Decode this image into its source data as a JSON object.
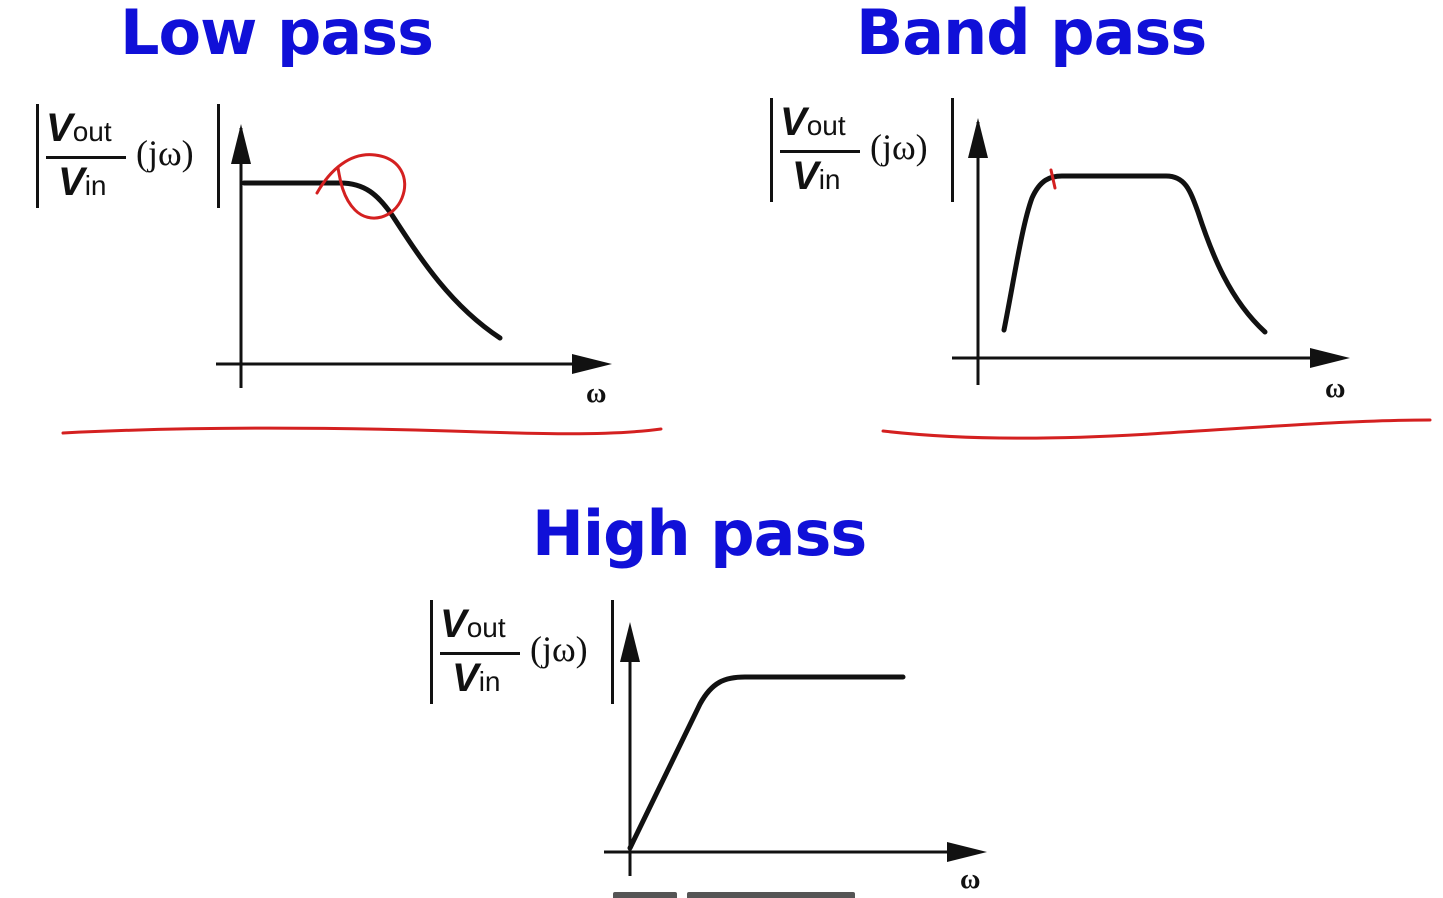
{
  "lowpass": {
    "title": "Low pass",
    "ylabel_numerator": "V",
    "ylabel_numerator_sub": "out",
    "ylabel_denominator": "V",
    "ylabel_denominator_sub": "in",
    "ylabel_argument": "(jω)",
    "xlabel": "ω"
  },
  "bandpass": {
    "title": "Band pass",
    "ylabel_numerator": "V",
    "ylabel_numerator_sub": "out",
    "ylabel_denominator": "V",
    "ylabel_denominator_sub": "in",
    "ylabel_argument": "(jω)",
    "xlabel": "ω"
  },
  "highpass": {
    "title": "High pass",
    "ylabel_numerator": "V",
    "ylabel_numerator_sub": "out",
    "ylabel_denominator": "V",
    "ylabel_denominator_sub": "in",
    "ylabel_argument": "(jω)",
    "xlabel": "ω"
  },
  "colors": {
    "title": "#1010d8",
    "curve": "#111111",
    "annotation": "#d42020"
  }
}
